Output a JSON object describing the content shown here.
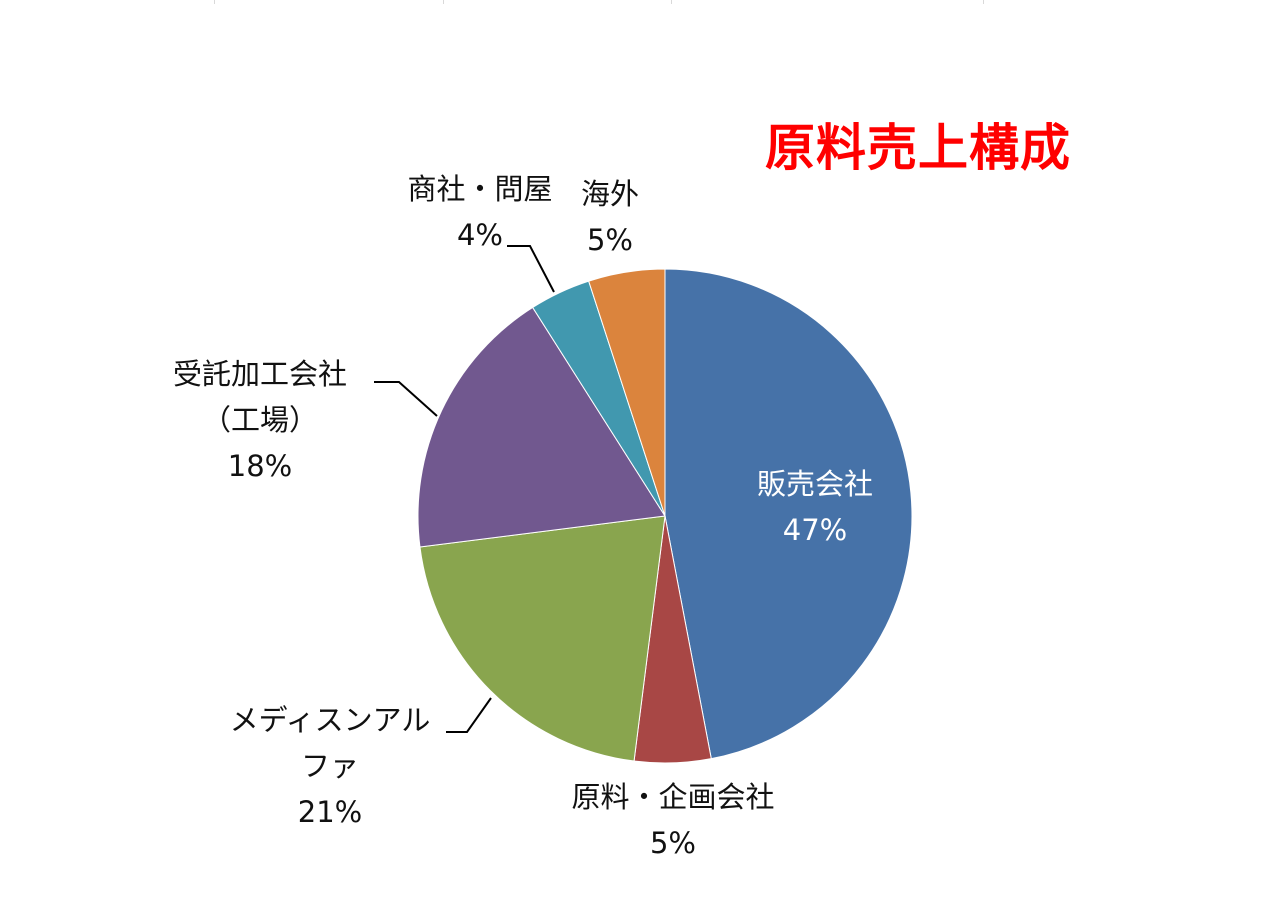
{
  "colors": {
    "title": "#ff0000",
    "slices": [
      "#4672a8",
      "#a84745",
      "#89a54e",
      "#71588f",
      "#4198af",
      "#db843d"
    ],
    "leader": "#000000"
  },
  "chart_data": {
    "type": "pie",
    "title": "原料売上構成",
    "start_angle_deg": 0,
    "direction": "clockwise",
    "slices": [
      {
        "label": "販売会社",
        "value": 47,
        "value_label": "47%"
      },
      {
        "label": "原料・企画会社",
        "value": 5,
        "value_label": "5%"
      },
      {
        "label": "メディスンアルファ",
        "label_lines": [
          "メディスンアル",
          "ファ"
        ],
        "value": 21,
        "value_label": "21%"
      },
      {
        "label": "受託加工会社（工場）",
        "label_lines": [
          "受託加工会社",
          "（工場）"
        ],
        "value": 18,
        "value_label": "18%"
      },
      {
        "label": "商社・問屋",
        "value": 4,
        "value_label": "4%"
      },
      {
        "label": "海外",
        "value": 5,
        "value_label": "5%"
      }
    ]
  }
}
